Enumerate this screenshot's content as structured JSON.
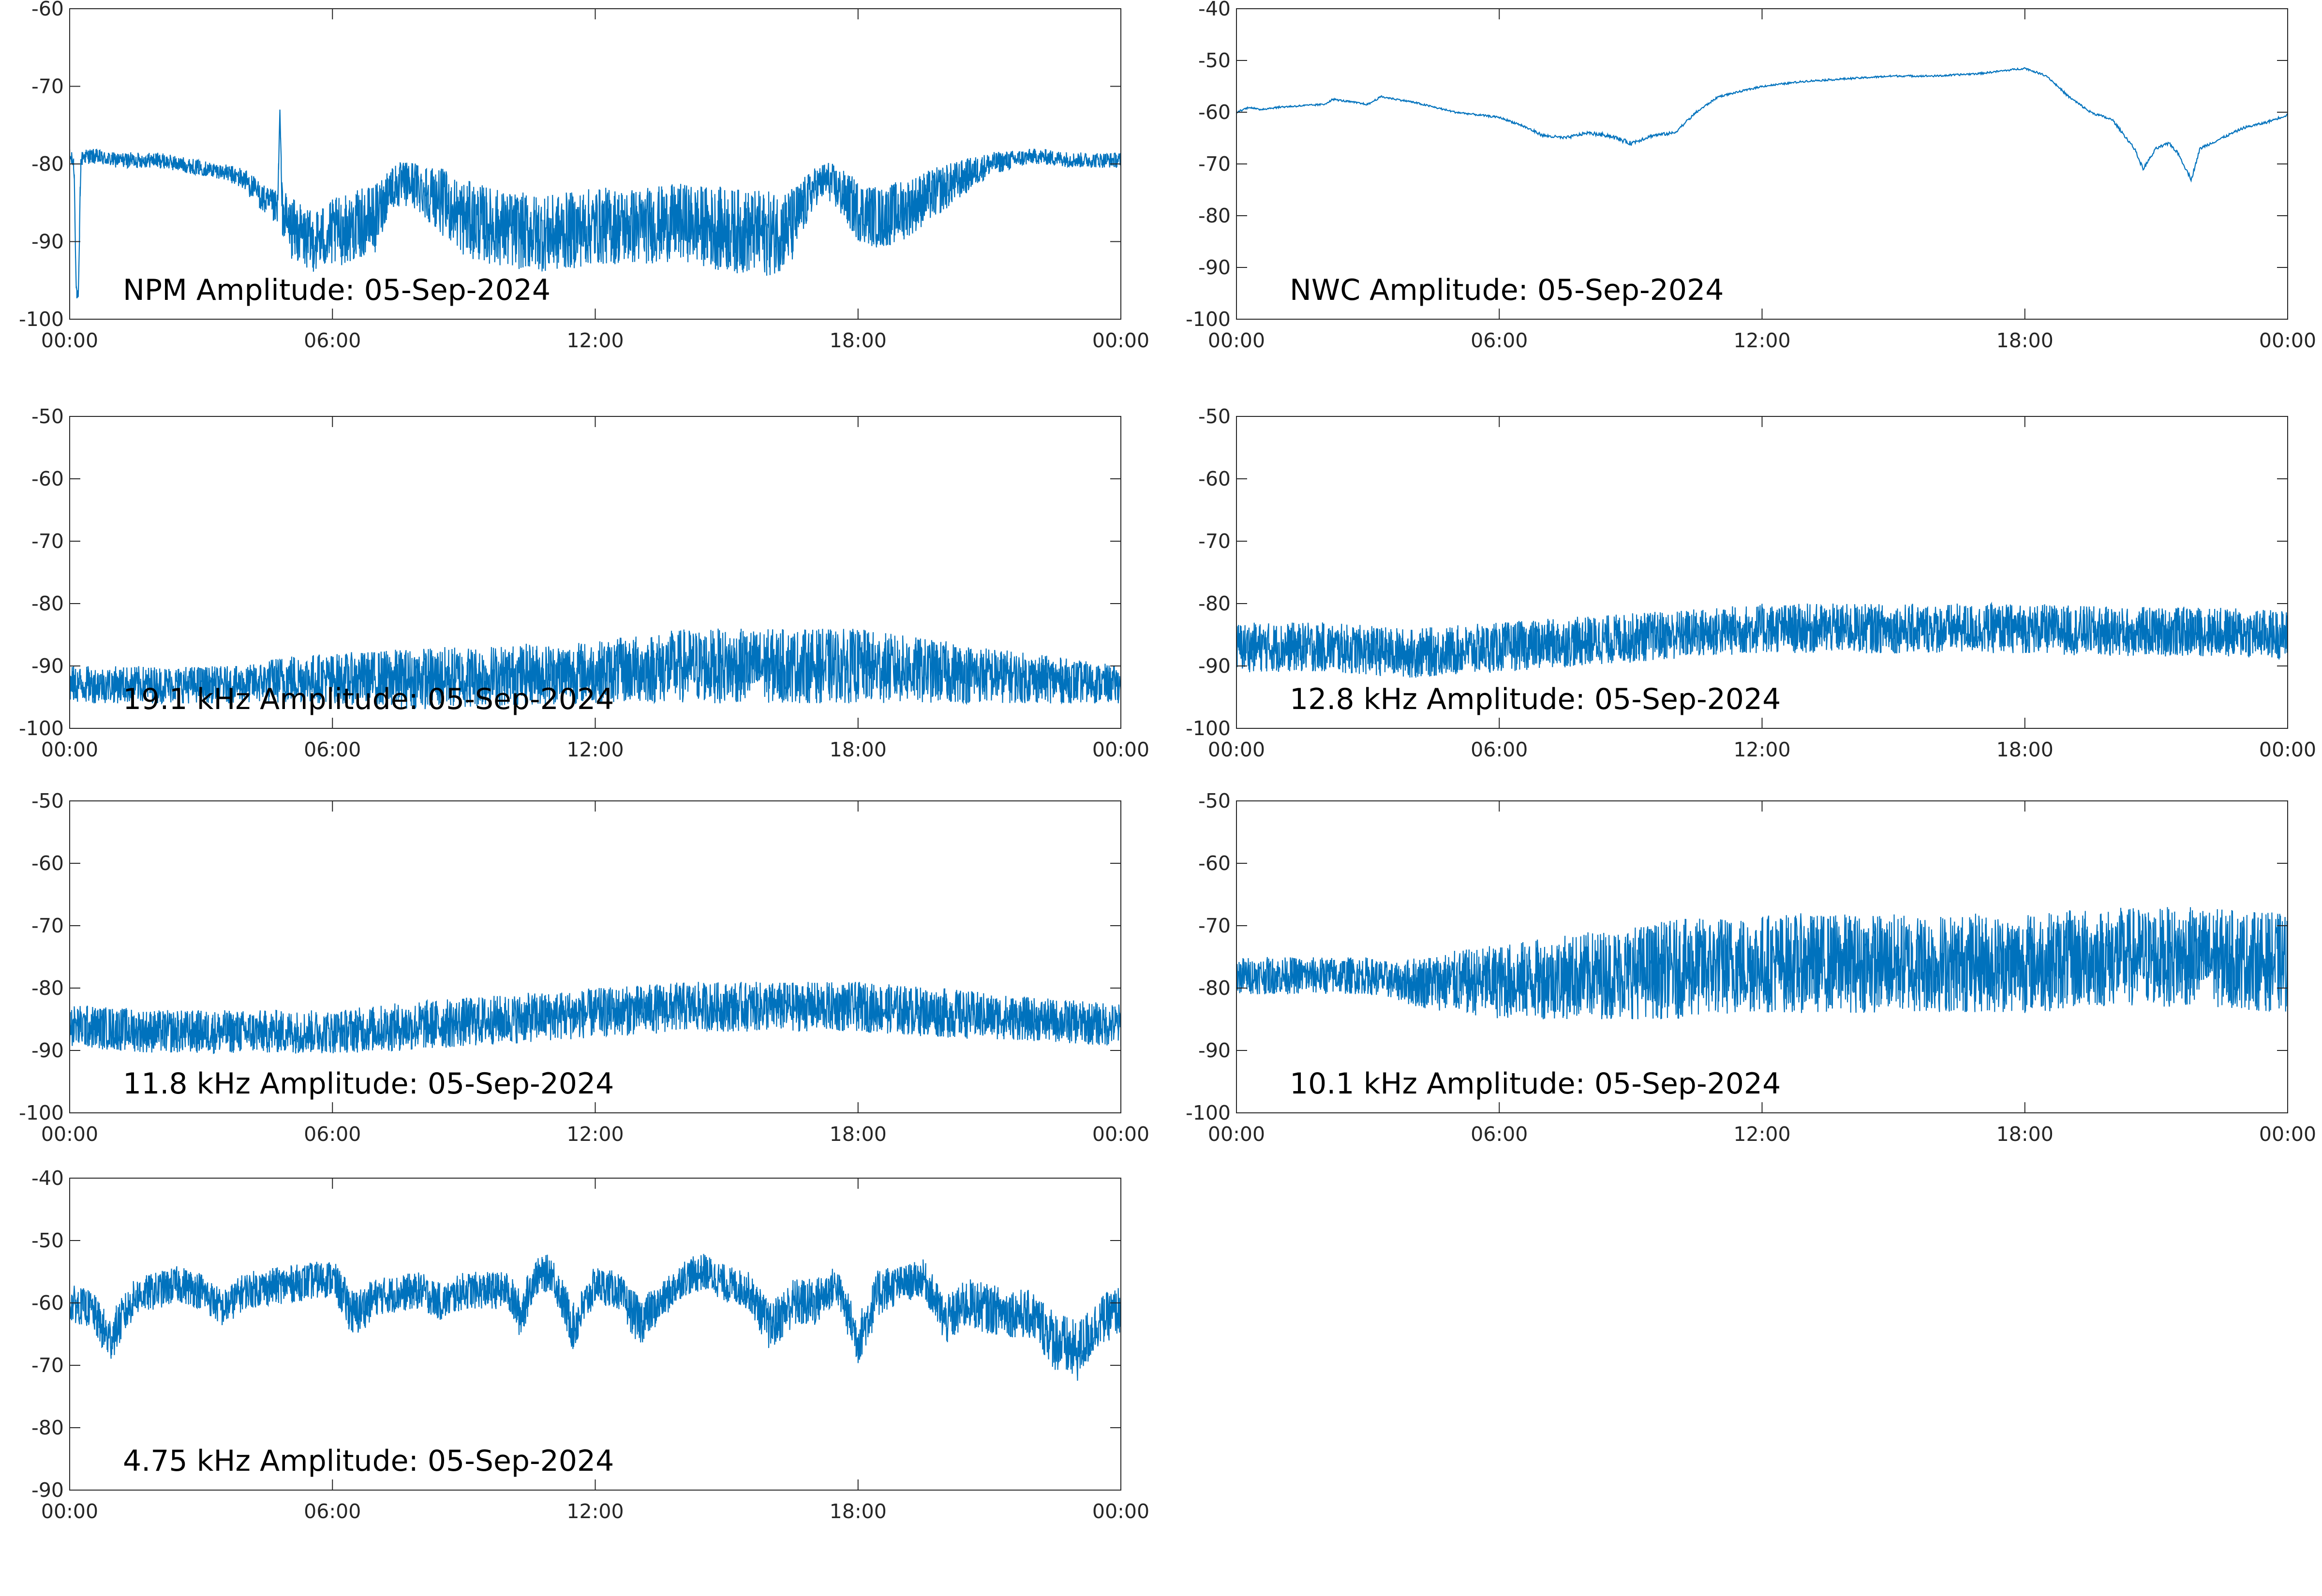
{
  "colors": {
    "line": "#0072BD",
    "axes": "#262626",
    "text": "#000000",
    "background": "#ffffff"
  },
  "chart_data": [
    {
      "id": "npm",
      "type": "line",
      "title": "NPM Amplitude: 05-Sep-2024",
      "x_tick_labels": [
        "00:00",
        "06:00",
        "12:00",
        "18:00",
        "00:00"
      ],
      "y_tick_labels": [
        "-100",
        "-90",
        "-80",
        "-70",
        "-60"
      ],
      "xlim_hours": [
        0,
        24
      ],
      "ylim": [
        -100,
        -60
      ],
      "grid": false,
      "series": [
        {
          "x_hours": [
            0,
            0.1,
            0.15,
            0.2,
            0.25,
            0.3,
            0.5,
            1,
            2,
            3,
            3.5,
            4,
            4.5,
            4.75,
            4.8,
            4.85,
            5,
            5.5,
            6,
            6.5,
            7,
            7.3,
            7.8,
            8.3,
            9,
            10,
            11,
            12,
            13,
            14,
            15,
            16,
            16.5,
            17,
            17.3,
            18,
            18.5,
            19,
            20,
            21,
            22,
            23,
            24
          ],
          "values": [
            -79,
            -80,
            -96,
            -98,
            -80,
            -79,
            -79,
            -79.5,
            -79.5,
            -80.5,
            -81,
            -82,
            -85,
            -86,
            -73,
            -86,
            -88,
            -90,
            -89,
            -88,
            -87,
            -83,
            -82.5,
            -84,
            -87,
            -88.5,
            -89,
            -88,
            -88,
            -87.5,
            -88.5,
            -89,
            -88,
            -83,
            -82,
            -86,
            -87,
            -86,
            -83,
            -80,
            -79,
            -79.5,
            -79.5
          ],
          "noise_envelope": [
            1,
            1,
            1,
            1,
            1,
            1,
            1,
            1,
            1,
            1,
            1,
            1.5,
            2,
            2.5,
            0,
            3,
            4,
            4,
            4.5,
            4.5,
            4.5,
            3,
            3,
            4,
            5,
            5,
            5,
            5,
            5,
            5,
            5.5,
            5.5,
            5,
            2.5,
            2.5,
            4,
            4,
            4,
            3,
            1.5,
            1,
            1,
            1
          ]
        }
      ]
    },
    {
      "id": "nwc",
      "type": "line",
      "title": "NWC Amplitude: 05-Sep-2024",
      "x_tick_labels": [
        "00:00",
        "06:00",
        "12:00",
        "18:00",
        "00:00"
      ],
      "y_tick_labels": [
        "-100",
        "-90",
        "-80",
        "-70",
        "-60",
        "-50",
        "-40"
      ],
      "xlim_hours": [
        0,
        24
      ],
      "ylim": [
        -100,
        -40
      ],
      "grid": false,
      "series": [
        {
          "x_hours": [
            0,
            0.3,
            0.5,
            1,
            2,
            2.2,
            3,
            3.3,
            4,
            5,
            6,
            6.5,
            7,
            7.5,
            8,
            8.5,
            9,
            9.5,
            10,
            10.5,
            11,
            12,
            13,
            14,
            15,
            16,
            17,
            18,
            18.5,
            19,
            19.5,
            20,
            20.5,
            20.7,
            21,
            21.3,
            21.5,
            21.8,
            22,
            22.5,
            23,
            23.5,
            24
          ],
          "values": [
            -60,
            -59,
            -59.5,
            -59,
            -58.5,
            -57.5,
            -58.5,
            -57,
            -58,
            -60,
            -61,
            -62.5,
            -64.5,
            -65,
            -64,
            -64.5,
            -66,
            -64.5,
            -64,
            -60,
            -57,
            -55,
            -54,
            -53.5,
            -53,
            -53,
            -52.5,
            -51.5,
            -53,
            -57,
            -60,
            -61.5,
            -67,
            -71,
            -67,
            -66,
            -68,
            -73,
            -67,
            -65,
            -63,
            -62,
            -60.5
          ],
          "noise_envelope": [
            0.3,
            0.3,
            0.3,
            0.3,
            0.3,
            0.3,
            0.3,
            0.3,
            0.3,
            0.3,
            0.3,
            0.4,
            0.5,
            0.5,
            0.5,
            0.7,
            0.7,
            0.5,
            0.5,
            0.4,
            0.3,
            0.3,
            0.3,
            0.3,
            0.3,
            0.3,
            0.3,
            0.3,
            0.3,
            0.4,
            0.4,
            0.4,
            0.5,
            0.6,
            0.5,
            0.5,
            0.5,
            0.6,
            0.5,
            0.4,
            0.4,
            0.4,
            0.4
          ]
        }
      ]
    },
    {
      "id": "f19_1",
      "type": "line",
      "title": "19.1 kHz Amplitude: 05-Sep-2024",
      "x_tick_labels": [
        "00:00",
        "06:00",
        "12:00",
        "18:00",
        "00:00"
      ],
      "y_tick_labels": [
        "-100",
        "-90",
        "-80",
        "-70",
        "-60",
        "-50"
      ],
      "xlim_hours": [
        0,
        24
      ],
      "ylim": [
        -100,
        -50
      ],
      "grid": false,
      "series": [
        {
          "x_hours": [
            0,
            2,
            4,
            5,
            6,
            8,
            10,
            12,
            14,
            16,
            18,
            20,
            22,
            24
          ],
          "values": [
            -93,
            -93,
            -93,
            -92,
            -92,
            -92,
            -91.5,
            -91,
            -90,
            -90,
            -90,
            -91,
            -92,
            -93
          ],
          "noise_envelope": [
            3,
            3,
            3,
            4,
            4,
            5,
            5,
            5,
            6,
            6,
            6,
            5,
            4,
            3
          ]
        }
      ]
    },
    {
      "id": "f12_8",
      "type": "line",
      "title": "12.8 kHz Amplitude: 05-Sep-2024",
      "x_tick_labels": [
        "00:00",
        "06:00",
        "12:00",
        "18:00",
        "00:00"
      ],
      "y_tick_labels": [
        "-100",
        "-90",
        "-80",
        "-70",
        "-60",
        "-50"
      ],
      "xlim_hours": [
        0,
        24
      ],
      "ylim": [
        -100,
        -50
      ],
      "grid": false,
      "series": [
        {
          "x_hours": [
            0,
            2,
            4,
            6,
            8,
            10,
            12,
            14,
            16,
            18,
            20,
            22,
            24
          ],
          "values": [
            -87,
            -87,
            -88,
            -87,
            -86,
            -85,
            -84,
            -84,
            -84,
            -84,
            -84.5,
            -84.5,
            -85
          ],
          "noise_envelope": [
            4,
            4,
            4,
            4,
            4,
            4,
            4,
            4,
            4,
            4,
            4,
            4,
            4
          ]
        }
      ]
    },
    {
      "id": "f11_8",
      "type": "line",
      "title": "11.8 kHz Amplitude: 05-Sep-2024",
      "x_tick_labels": [
        "00:00",
        "06:00",
        "12:00",
        "18:00",
        "00:00"
      ],
      "y_tick_labels": [
        "-100",
        "-90",
        "-80",
        "-70",
        "-60",
        "-50"
      ],
      "xlim_hours": [
        0,
        24
      ],
      "ylim": [
        -100,
        -50
      ],
      "grid": false,
      "series": [
        {
          "x_hours": [
            0,
            2,
            4,
            6,
            8,
            10,
            12,
            14,
            16,
            18,
            20,
            22,
            24
          ],
          "values": [
            -86,
            -87,
            -87,
            -87,
            -86,
            -85,
            -84,
            -83,
            -83,
            -83,
            -84,
            -85,
            -86
          ],
          "noise_envelope": [
            3.5,
            3.5,
            3.5,
            3.5,
            4,
            4,
            4,
            4,
            4,
            4,
            4,
            3.5,
            3.5
          ]
        }
      ]
    },
    {
      "id": "f10_1",
      "type": "line",
      "title": "10.1 kHz Amplitude: 05-Sep-2024",
      "x_tick_labels": [
        "00:00",
        "06:00",
        "12:00",
        "18:00",
        "00:00"
      ],
      "y_tick_labels": [
        "-100",
        "-90",
        "-80",
        "-70",
        "-60",
        "-50"
      ],
      "xlim_hours": [
        0,
        24
      ],
      "ylim": [
        -100,
        -50
      ],
      "grid": false,
      "series": [
        {
          "x_hours": [
            0,
            1,
            2,
            3,
            3.7,
            4,
            5,
            6,
            8,
            10,
            12,
            14,
            16,
            18,
            20,
            22,
            24
          ],
          "values": [
            -78,
            -78,
            -78,
            -78,
            -79,
            -79,
            -79,
            -79,
            -78,
            -77,
            -76,
            -76,
            -76,
            -76,
            -75,
            -75,
            -76
          ],
          "noise_envelope": [
            3,
            3,
            3,
            3,
            3,
            4,
            5,
            6,
            7,
            8,
            8,
            8,
            8,
            8,
            8,
            8,
            8
          ]
        }
      ]
    },
    {
      "id": "f4_75",
      "type": "line",
      "title": "4.75 kHz Amplitude: 05-Sep-2024",
      "x_tick_labels": [
        "00:00",
        "06:00",
        "12:00",
        "18:00",
        "00:00"
      ],
      "y_tick_labels": [
        "-90",
        "-80",
        "-70",
        "-60",
        "-50",
        "-40"
      ],
      "xlim_hours": [
        0,
        24
      ],
      "ylim": [
        -90,
        -40
      ],
      "grid": false,
      "series": [
        {
          "x_hours": [
            0,
            0.5,
            0.9,
            1.5,
            2.5,
            3,
            3.5,
            4,
            5,
            6,
            6.5,
            7,
            8,
            8.5,
            9,
            10,
            10.3,
            10.6,
            11,
            11.5,
            12,
            12.5,
            13,
            13.5,
            14,
            14.5,
            15,
            15.5,
            16,
            16.5,
            17,
            17.5,
            18,
            18.5,
            19,
            19.5,
            20,
            20.5,
            21,
            22,
            22.5,
            23,
            23.5,
            24
          ],
          "values": [
            -60,
            -61,
            -66,
            -59,
            -57,
            -58,
            -61,
            -58,
            -57,
            -56,
            -62,
            -59,
            -58,
            -60,
            -58,
            -58,
            -62,
            -56,
            -55,
            -64,
            -57,
            -58,
            -63,
            -60,
            -56,
            -55,
            -57,
            -58,
            -64,
            -60,
            -60,
            -57,
            -66,
            -58,
            -57,
            -56,
            -63,
            -60,
            -61,
            -62,
            -66,
            -68,
            -63,
            -61
          ],
          "noise_envelope": [
            3,
            3,
            4,
            3,
            3,
            3,
            3,
            3,
            3,
            3,
            4,
            3,
            3,
            3,
            3,
            3,
            4,
            3,
            3,
            4,
            3,
            3,
            4,
            3,
            3,
            3,
            3,
            3,
            4,
            4,
            4,
            3,
            4,
            4,
            3,
            3,
            4,
            4,
            4,
            4,
            5,
            5,
            4,
            4
          ]
        }
      ]
    }
  ]
}
